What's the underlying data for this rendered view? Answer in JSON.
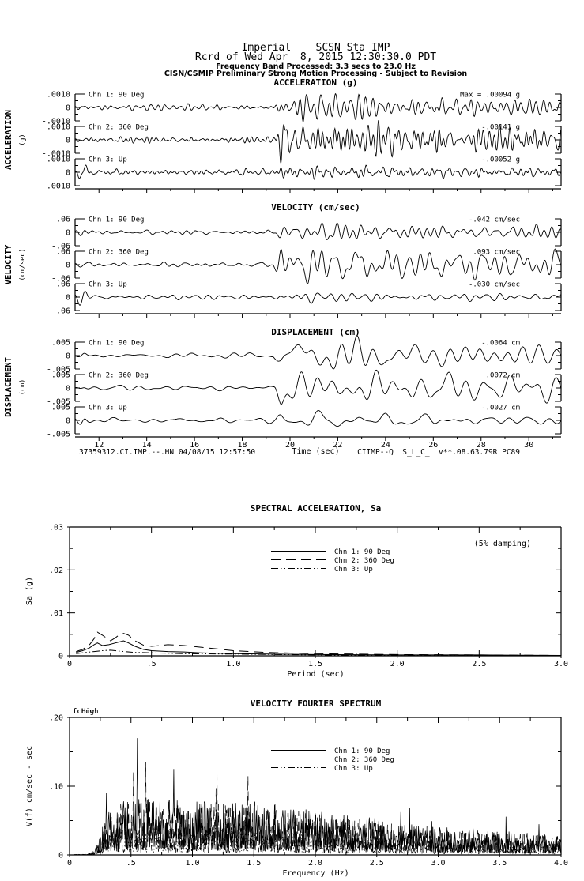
{
  "page": {
    "background": "#ffffff",
    "foreground": "#000000"
  },
  "header": {
    "line1": "Imperial    SCSN Sta IMP",
    "line2": "Rcrd of Wed Apr  8, 2015 12:30:30.0 PDT",
    "line3": "Frequency Band Processed: 3.3 secs to 23.0 Hz",
    "line4": "CISN/CSMIP Preliminary Strong Motion Processing - Subject to Revision"
  },
  "footer": {
    "left": "37359312.CI.IMP.--.HN 04/08/15 12:57:50",
    "time_axis_label": "Time (sec)",
    "right": "CIIMP--Q  S_L_C_  v**.08.63.79R PC89"
  },
  "legend": {
    "entries": [
      {
        "label": "Chn 1: 90 Deg",
        "style": "solid"
      },
      {
        "label": "Chn 2: 360 Deg",
        "style": "long-dash"
      },
      {
        "label": "Chn 3: Up",
        "style": "dash-dot-dot"
      }
    ]
  },
  "chart_data": [
    {
      "id": "acceleration",
      "type": "line",
      "title": "ACCELERATION (g)",
      "side_label": "ACCELERATION",
      "side_unit": "(g)",
      "x_range_sec": [
        11,
        31.35
      ],
      "xticks": [
        12,
        14,
        16,
        18,
        20,
        22,
        24,
        26,
        28,
        30
      ],
      "ytick_labels": [
        ".0010",
        "0",
        "-.0010"
      ],
      "y_scale_g": 0.001,
      "event_onset_sec": 19.3,
      "channels": [
        {
          "label": "Chn 1: 90 Deg",
          "max_text": "Max =   .00094      g",
          "max_value": 0.00094,
          "unit": "g"
        },
        {
          "label": "Chn 2: 360 Deg",
          "max_text": "-.00141      g",
          "max_value": -0.00141,
          "unit": "g"
        },
        {
          "label": "Chn 3: Up",
          "max_text": "-.00052      g",
          "max_value": -0.00052,
          "unit": "g"
        }
      ]
    },
    {
      "id": "velocity",
      "type": "line",
      "title": "VELOCITY (cm/sec)",
      "side_label": "VELOCITY",
      "side_unit": "(cm/sec)",
      "x_range_sec": [
        11,
        31.35
      ],
      "xticks": [
        12,
        14,
        16,
        18,
        20,
        22,
        24,
        26,
        28,
        30
      ],
      "ytick_labels": [
        ".06",
        "0",
        "-.06"
      ],
      "y_scale_cm_sec": 0.06,
      "event_onset_sec": 19.3,
      "channels": [
        {
          "label": "Chn 1: 90 Deg",
          "max_text": "-.042    cm/sec",
          "max_value": -0.042,
          "unit": "cm/sec"
        },
        {
          "label": "Chn 2: 360 Deg",
          "max_text": ".093    cm/sec",
          "max_value": 0.093,
          "unit": "cm/sec"
        },
        {
          "label": "Chn 3: Up",
          "max_text": "-.030    cm/sec",
          "max_value": -0.03,
          "unit": "cm/sec"
        }
      ]
    },
    {
      "id": "displacement",
      "type": "line",
      "title": "DISPLACEMENT (cm)",
      "side_label": "DISPLACEMENT",
      "side_unit": "(cm)",
      "x_range_sec": [
        11,
        31.35
      ],
      "xticks": [
        12,
        14,
        16,
        18,
        20,
        22,
        24,
        26,
        28,
        30
      ],
      "xtick_labels": [
        "12",
        "14",
        "16",
        "18",
        "20",
        "22",
        "24",
        "26",
        "28",
        "30"
      ],
      "ytick_labels": [
        ".005",
        "0",
        "-.005"
      ],
      "y_scale_cm": 0.005,
      "event_onset_sec": 19.3,
      "channels": [
        {
          "label": "Chn 1: 90 Deg",
          "max_text": "-.0064     cm",
          "max_value": -0.0064,
          "unit": "cm"
        },
        {
          "label": "Chn 2: 360 Deg",
          "max_text": ".0072     cm",
          "max_value": 0.0072,
          "unit": "cm"
        },
        {
          "label": "Chn 3: Up",
          "max_text": "-.0027     cm",
          "max_value": -0.0027,
          "unit": "cm"
        }
      ]
    },
    {
      "id": "spectral_acceleration",
      "type": "line",
      "title": "SPECTRAL ACCELERATION, Sa",
      "xlabel": "Period (sec)",
      "ylabel": "Sa (g)",
      "damping_note": "(5% damping)",
      "xlim": [
        0,
        3.0
      ],
      "ylim": [
        0,
        0.03
      ],
      "xtick_values": [
        0,
        0.5,
        1.0,
        1.5,
        2.0,
        2.5,
        3.0
      ],
      "xtick_labels": [
        "0",
        ".5",
        "1.0",
        "1.5",
        "2.0",
        "2.5",
        "3.0"
      ],
      "ytick_values": [
        0,
        0.01,
        0.02,
        0.03
      ],
      "ytick_labels": [
        "0",
        ".01",
        ".02",
        ".03"
      ],
      "minor_x_step": 0.25,
      "minor_y_step": 0.005,
      "legend_position": "upper-center",
      "series": [
        {
          "name": "Chn 1: 90 Deg",
          "x": [
            0.04,
            0.08,
            0.12,
            0.15,
            0.17,
            0.2,
            0.24,
            0.28,
            0.3,
            0.33,
            0.36,
            0.4,
            0.45,
            0.5,
            0.6,
            0.7,
            0.8,
            0.9,
            1.0,
            1.2,
            1.5,
            2.0,
            2.5,
            3.0
          ],
          "y": [
            0.0008,
            0.0012,
            0.0018,
            0.0026,
            0.003,
            0.0024,
            0.0026,
            0.003,
            0.0032,
            0.0035,
            0.003,
            0.0022,
            0.0015,
            0.0012,
            0.001,
            0.0009,
            0.0007,
            0.0006,
            0.0005,
            0.0004,
            0.0003,
            0.0002,
            0.0002,
            0.0001
          ]
        },
        {
          "name": "Chn 2: 360 Deg",
          "x": [
            0.04,
            0.08,
            0.12,
            0.15,
            0.17,
            0.2,
            0.25,
            0.28,
            0.3,
            0.33,
            0.36,
            0.4,
            0.45,
            0.5,
            0.55,
            0.6,
            0.7,
            0.8,
            0.9,
            1.0,
            1.2,
            1.5,
            2.0,
            2.5,
            3.0
          ],
          "y": [
            0.001,
            0.0015,
            0.0025,
            0.004,
            0.0055,
            0.0048,
            0.0035,
            0.0042,
            0.0048,
            0.0052,
            0.0048,
            0.0035,
            0.0025,
            0.0022,
            0.0024,
            0.0026,
            0.0024,
            0.002,
            0.0016,
            0.0012,
            0.0008,
            0.0005,
            0.0003,
            0.0002,
            0.0001
          ]
        },
        {
          "name": "Chn 3: Up",
          "x": [
            0.04,
            0.1,
            0.15,
            0.2,
            0.25,
            0.3,
            0.4,
            0.5,
            0.7,
            1.0,
            1.5,
            2.0,
            3.0
          ],
          "y": [
            0.0005,
            0.0008,
            0.001,
            0.0012,
            0.0013,
            0.0011,
            0.0008,
            0.0007,
            0.0005,
            0.0004,
            0.0002,
            0.0001,
            0.0001
          ]
        }
      ]
    },
    {
      "id": "velocity_fourier_spectrum",
      "type": "line",
      "title": "VELOCITY FOURIER SPECTRUM",
      "xlabel": "Frequency (Hz)",
      "ylabel": "V(f)  cm/sec - sec",
      "corner_frequency_labels": [
        "fcLow",
        "fcHigh"
      ],
      "xlim": [
        0,
        4.0
      ],
      "ylim": [
        0,
        0.2
      ],
      "xtick_values": [
        0,
        0.5,
        1.0,
        1.5,
        2.0,
        2.5,
        3.0,
        3.5,
        4.0
      ],
      "xtick_labels": [
        "0",
        ".5",
        "1.0",
        "1.5",
        "2.0",
        "2.5",
        "3.0",
        "3.5",
        "4.0"
      ],
      "ytick_values": [
        0,
        0.1,
        0.2
      ],
      "ytick_labels": [
        "0",
        ".10",
        ".20"
      ],
      "minor_x_step": 0.25,
      "minor_y_step": 0.05,
      "envelope": {
        "x": [
          0.05,
          0.15,
          0.2,
          0.25,
          0.3,
          0.4,
          0.5,
          0.6,
          0.8,
          1.0,
          1.2,
          1.5,
          1.8,
          2.0,
          2.2,
          2.5,
          2.8,
          3.0,
          3.2,
          3.5,
          3.8,
          4.0
        ],
        "y": [
          0.0005,
          0.001,
          0.004,
          0.02,
          0.045,
          0.055,
          0.06,
          0.062,
          0.058,
          0.055,
          0.055,
          0.055,
          0.05,
          0.045,
          0.042,
          0.038,
          0.032,
          0.03,
          0.028,
          0.025,
          0.022,
          0.02
        ]
      },
      "notable_peaks": [
        {
          "frequency_hz": 0.55,
          "amplitude": 0.17
        },
        {
          "frequency_hz": 0.62,
          "amplitude": 0.135
        },
        {
          "frequency_hz": 0.85,
          "amplitude": 0.125
        },
        {
          "frequency_hz": 1.45,
          "amplitude": 0.115
        }
      ]
    }
  ]
}
